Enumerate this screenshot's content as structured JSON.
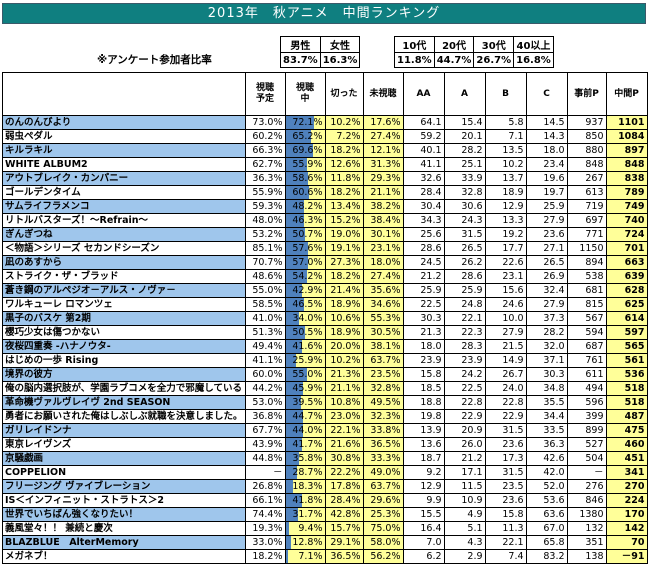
{
  "title": "2013年　秋アニメ　中間ランキング",
  "survey_label": "※アンケート参加者比率",
  "gender": {
    "headers": [
      "男性",
      "女性"
    ],
    "values": [
      "83.7%",
      "16.3%"
    ]
  },
  "age": {
    "headers": [
      "10代",
      "20代",
      "30代",
      "40以上"
    ],
    "values": [
      "11.8%",
      "44.7%",
      "26.7%",
      "16.8%"
    ]
  },
  "columns": [
    "",
    "視聴\n予定",
    "視聴\n中",
    "切った",
    "未視聴",
    "AA",
    "A",
    "B",
    "C",
    "事前P",
    "中間P"
  ],
  "colors": {
    "title_bg": "#0f7f80",
    "watching_bar": "#4f81bd",
    "yellow": "#ffff99",
    "highlight_name": "#9fc6ec"
  },
  "rows": [
    [
      "のんのんびより",
      "73.0%",
      "72.1%",
      "10.2%",
      "17.6%",
      "64.1",
      "15.4",
      "5.8",
      "14.5",
      "937",
      "1101"
    ],
    [
      "弱虫ペダル",
      "60.2%",
      "65.2%",
      "7.2%",
      "27.4%",
      "59.2",
      "20.1",
      "7.1",
      "14.3",
      "850",
      "1084"
    ],
    [
      "キルラキル",
      "66.3%",
      "69.6%",
      "18.2%",
      "12.1%",
      "40.1",
      "28.2",
      "13.5",
      "18.0",
      "880",
      "897"
    ],
    [
      "WHITE ALBUM2",
      "62.7%",
      "55.9%",
      "12.6%",
      "31.3%",
      "41.1",
      "25.1",
      "10.2",
      "23.4",
      "848",
      "848"
    ],
    [
      "アウトブレイク・カンパニー",
      "36.3%",
      "58.6%",
      "11.8%",
      "29.3%",
      "32.6",
      "33.9",
      "13.7",
      "19.6",
      "267",
      "838"
    ],
    [
      "ゴールデンタイム",
      "55.9%",
      "60.6%",
      "18.2%",
      "21.1%",
      "28.4",
      "32.8",
      "18.9",
      "19.7",
      "613",
      "789"
    ],
    [
      "サムライフラメンコ",
      "59.3%",
      "48.2%",
      "13.4%",
      "38.2%",
      "30.4",
      "30.6",
      "12.9",
      "25.9",
      "719",
      "749"
    ],
    [
      "リトルバスターズ！～Refrain～",
      "48.0%",
      "46.3%",
      "15.2%",
      "38.4%",
      "34.3",
      "24.3",
      "13.3",
      "27.9",
      "697",
      "740"
    ],
    [
      "ぎんぎつね",
      "53.2%",
      "50.7%",
      "19.0%",
      "30.1%",
      "25.6",
      "31.5",
      "19.2",
      "23.6",
      "771",
      "724"
    ],
    [
      "＜物語＞シリーズ セカンドシーズン",
      "85.1%",
      "57.6%",
      "19.1%",
      "23.1%",
      "28.6",
      "26.5",
      "17.7",
      "27.1",
      "1150",
      "701"
    ],
    [
      "凪のあすから",
      "70.7%",
      "57.0%",
      "27.3%",
      "18.0%",
      "24.5",
      "26.2",
      "22.6",
      "26.5",
      "894",
      "663"
    ],
    [
      "ストライク・ザ・ブラッド",
      "48.6%",
      "54.2%",
      "18.2%",
      "27.4%",
      "21.2",
      "28.6",
      "23.1",
      "26.9",
      "538",
      "639"
    ],
    [
      "蒼き鋼のアルペジオ－アルス・ノヴァ－",
      "55.0%",
      "42.9%",
      "21.4%",
      "35.6%",
      "25.9",
      "25.9",
      "15.6",
      "32.4",
      "681",
      "628"
    ],
    [
      "ワルキューレ ロマンツェ",
      "58.5%",
      "46.5%",
      "18.9%",
      "34.6%",
      "22.5",
      "24.8",
      "24.6",
      "27.9",
      "815",
      "625"
    ],
    [
      "黒子のバスケ 第2期",
      "41.0%",
      "34.0%",
      "10.6%",
      "55.3%",
      "30.3",
      "22.1",
      "10.0",
      "37.3",
      "567",
      "614"
    ],
    [
      "櫻巧少女は傷つかない",
      "51.3%",
      "50.5%",
      "18.9%",
      "30.5%",
      "21.3",
      "22.3",
      "27.9",
      "28.2",
      "594",
      "597"
    ],
    [
      "夜桜四重奏 -ハナノウタ-",
      "49.4%",
      "41.6%",
      "20.0%",
      "38.1%",
      "18.0",
      "28.3",
      "21.5",
      "32.0",
      "687",
      "565"
    ],
    [
      "はじめの一歩 Rising",
      "41.1%",
      "25.9%",
      "10.2%",
      "63.7%",
      "23.9",
      "23.9",
      "14.9",
      "37.1",
      "761",
      "561"
    ],
    [
      "境界の彼方",
      "60.0%",
      "55.0%",
      "21.3%",
      "23.5%",
      "15.8",
      "24.2",
      "26.7",
      "30.3",
      "611",
      "536"
    ],
    [
      "俺の脳内選択肢が、学園ラブコメを全力で邪魔している",
      "44.2%",
      "45.9%",
      "21.1%",
      "32.8%",
      "18.5",
      "22.5",
      "24.0",
      "34.8",
      "494",
      "518"
    ],
    [
      "革命機ヴァルヴレイヴ 2nd SEASON",
      "53.0%",
      "39.5%",
      "10.8%",
      "49.5%",
      "18.8",
      "22.8",
      "22.8",
      "35.5",
      "596",
      "518"
    ],
    [
      "勇者にお願いされた俺はしぶしぶ就職を決意しました。",
      "36.8%",
      "44.7%",
      "23.0%",
      "32.3%",
      "19.8",
      "22.9",
      "22.9",
      "34.4",
      "399",
      "487"
    ],
    [
      "ガリレイドンナ",
      "67.7%",
      "44.0%",
      "22.1%",
      "33.8%",
      "13.9",
      "20.9",
      "31.5",
      "33.5",
      "899",
      "475"
    ],
    [
      "東京レイヴンズ",
      "43.9%",
      "41.7%",
      "21.6%",
      "36.5%",
      "13.6",
      "26.0",
      "23.6",
      "36.3",
      "527",
      "460"
    ],
    [
      "京騒戯画",
      "44.8%",
      "35.8%",
      "30.8%",
      "33.3%",
      "18.7",
      "21.2",
      "17.3",
      "42.6",
      "504",
      "451"
    ],
    [
      "COPPELION",
      "－",
      "28.7%",
      "22.2%",
      "49.0%",
      "9.2",
      "17.1",
      "31.5",
      "42.0",
      "－",
      "341"
    ],
    [
      "フリージング ヴァイブレーション",
      "26.8%",
      "18.3%",
      "17.8%",
      "63.7%",
      "12.9",
      "11.5",
      "23.5",
      "52.0",
      "276",
      "270"
    ],
    [
      "IS＜インフィニット・ストラトス＞2",
      "66.1%",
      "41.8%",
      "28.4%",
      "29.6%",
      "9.9",
      "10.9",
      "23.6",
      "53.6",
      "846",
      "224"
    ],
    [
      "世界でいちばん強くなりたい！",
      "74.4%",
      "31.7%",
      "42.8%",
      "25.3%",
      "15.5",
      "4.9",
      "15.8",
      "63.6",
      "1380",
      "170"
    ],
    [
      "義風堂々！！ 兼続と慶次",
      "19.3%",
      "9.4%",
      "15.7%",
      "75.0%",
      "16.4",
      "5.1",
      "11.3",
      "67.0",
      "132",
      "142"
    ],
    [
      "BLAZBLUE　AlterMemory",
      "33.0%",
      "12.8%",
      "29.1%",
      "58.0%",
      "7.0",
      "4.3",
      "22.1",
      "65.8",
      "351",
      "70"
    ],
    [
      "メガネブ！",
      "18.2%",
      "7.1%",
      "36.5%",
      "56.2%",
      "6.2",
      "2.9",
      "7.4",
      "83.2",
      "138",
      "－91"
    ]
  ],
  "highlight_rows": [
    0,
    2,
    4,
    6,
    8,
    10,
    12,
    14,
    16,
    18,
    20,
    22,
    24,
    26,
    28,
    30
  ]
}
